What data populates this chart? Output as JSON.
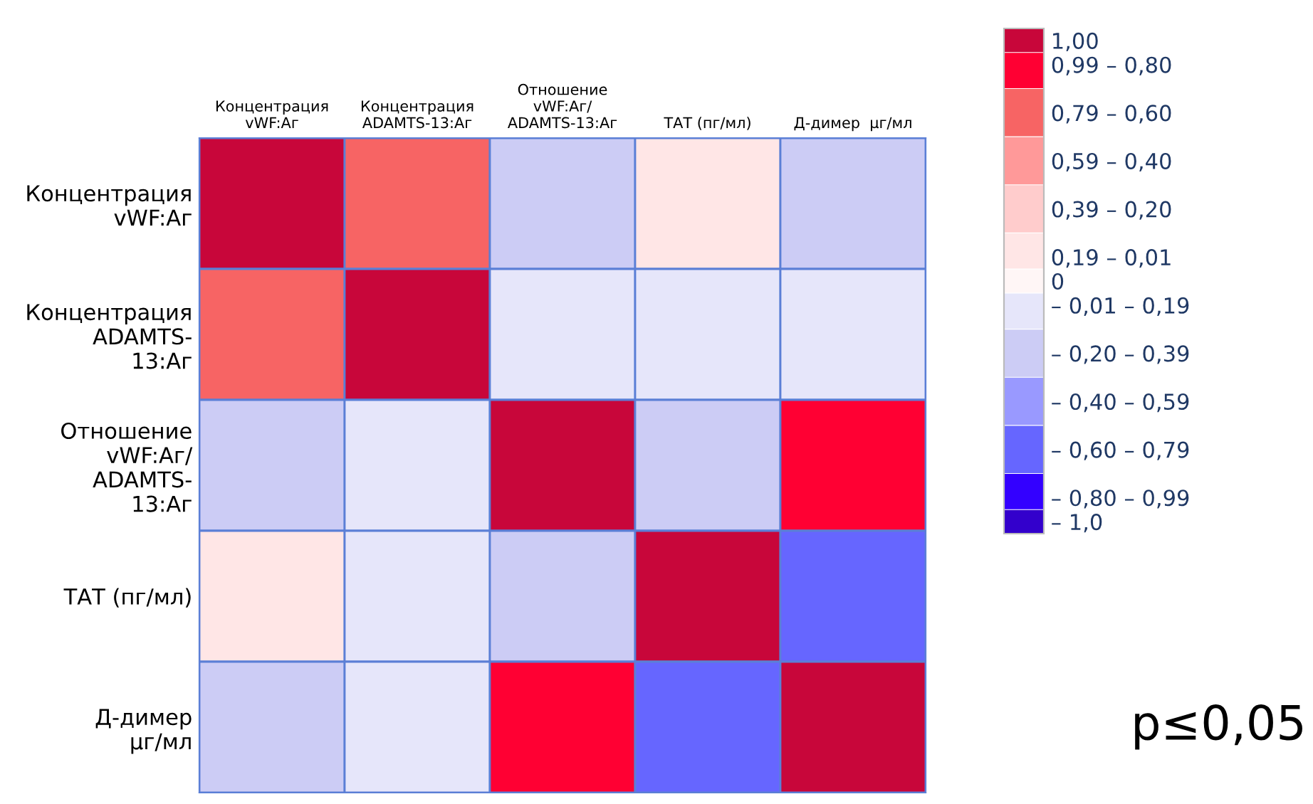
{
  "chart_data": {
    "type": "heatmap",
    "categories": [
      "Концентрация\nvWF:Аг",
      "Концентрация\nADAMTS-13:Аг",
      "Отношение\nvWF:Аг/\nADAMTS-13:Аг",
      "ТАТ (пг/мл)",
      "Д-димер  μг/мл"
    ],
    "y_categories": [
      "Концентрация\nvWF:Аг",
      "Концентрация\nADAMTS-\n13:Аг",
      "Отношение\nvWF:Аг/\nADAMTS-\n13:Аг",
      "ТАТ (пг/мл)",
      "Д-димер\nμг/мл"
    ],
    "cells": [
      [
        1,
        0.7,
        -0.3,
        0.1,
        -0.3
      ],
      [
        0.7,
        1,
        -0.1,
        -0.1,
        -0.1
      ],
      [
        -0.3,
        -0.1,
        1,
        -0.3,
        0.9
      ],
      [
        0.1,
        -0.1,
        -0.3,
        1,
        -0.7
      ],
      [
        -0.3,
        -0.1,
        0.9,
        -0.7,
        1
      ]
    ],
    "clim": [
      -1.05,
      1.05
    ],
    "cticks": [
      {
        "value": 1,
        "label": "1,00"
      },
      {
        "value": 0.9,
        "label": "0,99 – 0,80"
      },
      {
        "value": 0.7,
        "label": "0,79 – 0,60"
      },
      {
        "value": 0.5,
        "label": "0,59 – 0,40"
      },
      {
        "value": 0.3,
        "label": "0,39 – 0,20"
      },
      {
        "value": 0.1,
        "label": "0,19 – 0,01"
      },
      {
        "value": 0,
        "label": "0"
      },
      {
        "value": -0.1,
        "label": "– 0,01 – 0,19"
      },
      {
        "value": -0.3,
        "label": "– 0,20 – 0,39"
      },
      {
        "value": -0.5,
        "label": "– 0,40 – 0,59"
      },
      {
        "value": -0.7,
        "label": "– 0,60 – 0,79"
      },
      {
        "value": -0.9,
        "label": "– 0,80 – 0,99"
      },
      {
        "value": -1,
        "label": "– 1,0"
      }
    ],
    "colors": [
      "#c8063a",
      "#ff0033",
      "#f76464",
      "#ff9999",
      "#ffcccc",
      "#ffe6e6",
      "#fff6f6",
      "#e6e6fa",
      "#ccccf5",
      "#9999ff",
      "#6666ff",
      "#3300ff",
      "#3300cc"
    ],
    "annotations": [
      "p≤0,05"
    ]
  }
}
